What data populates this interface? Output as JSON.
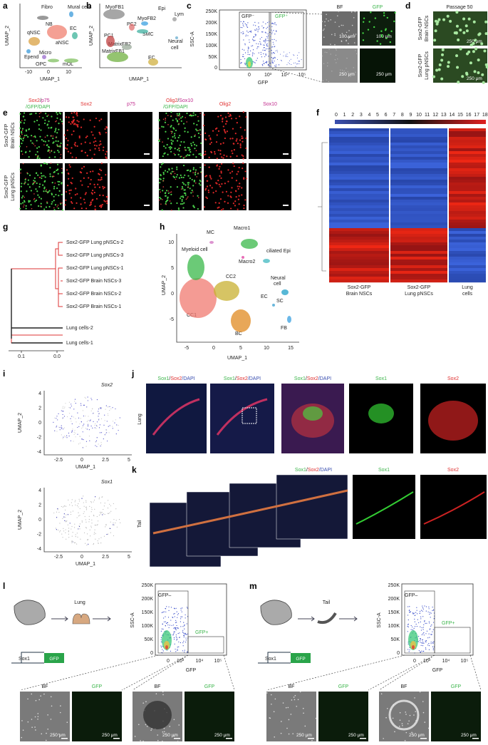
{
  "a": {
    "letter": "a",
    "clusters": [
      "Fibro",
      "Mural cells",
      "qNSC",
      "NB",
      "EC",
      "aNSC",
      "Epend",
      "Micro",
      "OPC",
      "mOL"
    ],
    "x_label": "UMAP_1",
    "y_label": "UMAP_2",
    "xticks": [
      "-10",
      "0",
      "10"
    ]
  },
  "b": {
    "letter": "b",
    "clusters": [
      "MyoFB1",
      "PC2",
      "MyoFB2",
      "Epi",
      "Lym",
      "PC1",
      "SMC",
      "MatrixFB2",
      "MatrixFB1",
      "EC"
    ],
    "neural_cell": [
      "Neural",
      "cell"
    ],
    "x_label": "UMAP_1",
    "y_label": "UMAP_2"
  },
  "c": {
    "letter": "c",
    "y_label": "SSC-A",
    "yticks": [
      "250K",
      "200K",
      "150K",
      "100K",
      "50K",
      "0"
    ],
    "xticks": [
      "0",
      "10³",
      "10⁴",
      "10⁵"
    ],
    "x_label": "GFP",
    "gates": [
      "GFP⁻",
      "GFP⁺"
    ],
    "image_headers": [
      "BF",
      "GFP"
    ],
    "scale_bars": [
      "100 μm",
      "100 μm",
      "250 μm",
      "250 μm"
    ]
  },
  "d": {
    "letter": "d",
    "title": "Passage 50",
    "rows": [
      [
        "Sox2-GFP",
        "Brain NSCs"
      ],
      [
        "Sox2-GFP",
        "Lung pNSCs"
      ]
    ],
    "scale_bars": [
      "250 μm",
      "250 μm"
    ]
  },
  "e": {
    "letter": "e",
    "headers": [
      [
        "Sox2",
        "/",
        "p75"
      ],
      [
        "/GFP/DAPI"
      ],
      [
        "Sox2"
      ],
      [
        "p75"
      ],
      [
        "Olig2",
        "/",
        "Sox10"
      ],
      [
        "/GFP/DAPI"
      ],
      [
        "Olig2"
      ],
      [
        "Sox10"
      ]
    ],
    "rows": [
      [
        "Sox2-GFP",
        "Brain NSCs"
      ],
      [
        "Sox2-GFP",
        "Lung pNSCs"
      ]
    ]
  },
  "f": {
    "letter": "f",
    "scale": [
      "0",
      "1",
      "2",
      "3",
      "4",
      "5",
      "6",
      "7",
      "8",
      "9",
      "10",
      "11",
      "12",
      "13",
      "14",
      "15",
      "16",
      "17",
      "18"
    ],
    "columns": [
      [
        "Sox2-GFP",
        "Brain NSCs"
      ],
      [
        "Sox2-GFP",
        "Lung pNSCs"
      ],
      [
        "Lung",
        "cells"
      ]
    ]
  },
  "g": {
    "letter": "g",
    "leaves": [
      "Sox2-GFP Lung pNSCs-2",
      "Sox2-GFP Lung pNSCs-3",
      "Sox2-GFP Lung pNSCs-1",
      "Sox2-GFP Brain NSCs-3",
      "Sox2-GFP Brain NSCs-2",
      "Sox2-GFP Brain NSCs-1",
      "Lung cells-2",
      "Lung cells-1"
    ],
    "xticks": [
      "0.1",
      "0.0"
    ]
  },
  "h": {
    "letter": "h",
    "clusters": [
      "MC",
      "Macro1",
      "Myeloid cell",
      "Macro2",
      "ciliated Epi",
      "CC2",
      "EC",
      "SC",
      "CC1",
      "BC",
      "FB"
    ],
    "neural_cell": [
      "Neural",
      "cell"
    ],
    "x_label": "UMAP_1",
    "y_label": "UMAP_2",
    "xticks": [
      "-5",
      "0",
      "5",
      "10",
      "15"
    ],
    "yticks": [
      "10",
      "5",
      "0",
      "-5"
    ]
  },
  "i": {
    "letter": "i",
    "plots": [
      {
        "title": "Sox2",
        "x_label": "UMAP_1",
        "y_label": "UMAP_2"
      },
      {
        "title": "Sox1",
        "x_label": "UMAP_1",
        "y_label": "UMAP_2"
      }
    ],
    "xticks": [
      "-2.5",
      "0",
      "2.5",
      "5"
    ],
    "yticks": [
      "4",
      "2",
      "0",
      "-2",
      "-4"
    ]
  },
  "j": {
    "letter": "j",
    "row": "Lung",
    "merge": [
      "Sox1",
      "/",
      "Sox2",
      "/DAPI"
    ],
    "single": [
      "Sox1",
      "Sox2"
    ]
  },
  "k": {
    "letter": "k",
    "row": "Tail",
    "merge": [
      "Sox1",
      "/",
      "Sox2",
      "/DAPI"
    ],
    "single": [
      "Sox1",
      "Sox2"
    ]
  },
  "l": {
    "letter": "l",
    "organ": "Lung",
    "construct": [
      "Sox1",
      "GFP"
    ],
    "y_label": "SSC-A",
    "yticks": [
      "250K",
      "200K",
      "150K",
      "100K",
      "50K",
      "0"
    ],
    "xticks": [
      "0",
      "10³",
      "10⁴",
      "10⁵"
    ],
    "x_label": "GFP",
    "gates": [
      "GFP–",
      "GFP+"
    ],
    "image_headers": [
      "BF",
      "GFP",
      "BF",
      "GFP"
    ],
    "scale_bars": [
      "250 μm",
      "250 μm",
      "250 μm",
      "250 μm"
    ]
  },
  "m": {
    "letter": "m",
    "organ": "Tail",
    "construct": [
      "Sox1",
      "GFP"
    ],
    "y_label": "SSC-A",
    "yticks": [
      "250K",
      "200K",
      "150K",
      "100K",
      "50K",
      "0"
    ],
    "xticks": [
      "0",
      "10³",
      "10⁴",
      "10⁵"
    ],
    "x_label": "GFP",
    "gates": [
      "GFP–",
      "GFP+"
    ],
    "image_headers": [
      "BF",
      "GFP",
      "BF",
      "GFP"
    ],
    "scale_bars": [
      "250 μm",
      "250 μm",
      "250 μm",
      "250 μm"
    ]
  }
}
